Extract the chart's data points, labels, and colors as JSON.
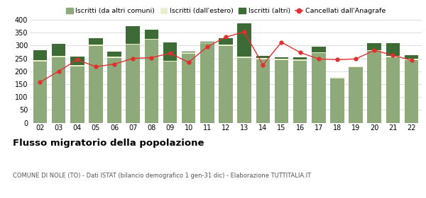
{
  "years": [
    "02",
    "03",
    "04",
    "05",
    "06",
    "07",
    "08",
    "09",
    "10",
    "11",
    "12",
    "13",
    "14",
    "15",
    "16",
    "17",
    "18",
    "19",
    "20",
    "21",
    "22"
  ],
  "iscritti_comuni": [
    238,
    255,
    218,
    297,
    253,
    303,
    323,
    238,
    268,
    308,
    298,
    253,
    245,
    243,
    240,
    270,
    173,
    215,
    278,
    255,
    243
  ],
  "iscritti_estero": [
    6,
    6,
    6,
    6,
    5,
    4,
    4,
    4,
    5,
    5,
    5,
    5,
    6,
    6,
    6,
    4,
    5,
    5,
    5,
    5,
    5
  ],
  "iscritti_altri": [
    38,
    45,
    32,
    25,
    17,
    68,
    35,
    70,
    3,
    3,
    25,
    127,
    10,
    5,
    8,
    22,
    0,
    0,
    25,
    48,
    15
  ],
  "cancellati": [
    158,
    200,
    245,
    218,
    228,
    250,
    253,
    270,
    235,
    295,
    333,
    353,
    225,
    313,
    273,
    248,
    245,
    248,
    282,
    262,
    243
  ],
  "color_comuni": "#8faa7a",
  "color_estero": "#e8eecc",
  "color_altri": "#3d6b35",
  "color_cancellati": "#e03030",
  "color_grid": "#d0d0d0",
  "ylim": [
    0,
    400
  ],
  "yticks": [
    0,
    50,
    100,
    150,
    200,
    250,
    300,
    350,
    400
  ],
  "title": "Flusso migratorio della popolazione",
  "subtitle": "COMUNE DI NOLE (TO) - Dati ISTAT (bilancio demografico 1 gen-31 dic) - Elaborazione TUTTITALIA.IT",
  "legend_labels": [
    "Iscritti (da altri comuni)",
    "Iscritti (dall'estero)",
    "Iscritti (altri)",
    "Cancellati dall'Anagrafe"
  ],
  "bg_color": "#ffffff"
}
